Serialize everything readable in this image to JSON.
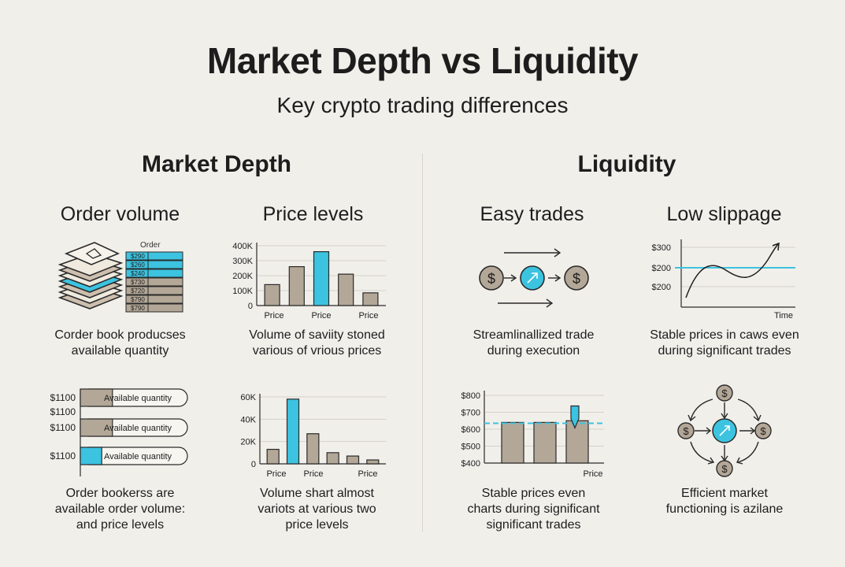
{
  "header": {
    "title": "Market Depth vs Liquidity",
    "subtitle": "Key crypto trading differences"
  },
  "colors": {
    "accent": "#3cc3e0",
    "taupe": "#b3a797",
    "ink": "#1d1d1d",
    "background": "#f1efea"
  },
  "market_depth": {
    "heading": "Market Depth",
    "order_volume": {
      "title": "Order volume",
      "book_header": "Order",
      "book_prices": [
        "$290",
        "$260",
        "$240",
        "$730",
        "$720",
        "$790",
        "$790"
      ],
      "caption_1": "Corder book producses",
      "caption_2": "available quantity",
      "icon": "stacked-books-icon"
    },
    "price_levels": {
      "title": "Price levels",
      "caption_1": "Volume of saviity stoned",
      "caption_2": "various of vrious prices"
    },
    "available_quantity": {
      "rows": [
        {
          "price": "$1100",
          "label": "Available quantity",
          "fill": 0.3,
          "highlight": false
        },
        {
          "price": "$1100",
          "label": "",
          "fill": 0.0,
          "highlight": false
        },
        {
          "price": "$1100",
          "label": "Available quantity",
          "fill": 0.3,
          "highlight": false
        },
        {
          "price": "$1100",
          "label": "Available quantity",
          "fill": 0.2,
          "highlight": true
        }
      ],
      "caption_1": "Order bookerss are",
      "caption_2": "available order volume:",
      "caption_3": "and price levels"
    },
    "volume_chart": {
      "caption_1": "Volume shart almost",
      "caption_2": "variots at various two",
      "caption_3": "price levels"
    }
  },
  "liquidity": {
    "heading": "Liquidity",
    "easy_trades": {
      "title": "Easy trades",
      "caption_1": "Streamlinallized trade",
      "caption_2": "during execution",
      "icon": "dollar-coin-icon"
    },
    "low_slippage": {
      "title": "Low slippage",
      "caption_1": "Stable prices in caws even",
      "caption_2": "during significant trades"
    },
    "stable_prices": {
      "caption_1": "Stable prices even",
      "caption_2": "charts during significant",
      "caption_3": "significant trades"
    },
    "efficient_market": {
      "caption_1": "Efficient market",
      "caption_2": "functioning is azilane",
      "icon": "cycle-arrows-icon"
    }
  },
  "chart_data": [
    {
      "type": "bar",
      "categories": [
        "",
        "",
        "",
        "",
        ""
      ],
      "values": [
        140000,
        260000,
        360000,
        210000,
        85000
      ],
      "highlight_index": 2,
      "yticks": [
        "400K",
        "300K",
        "200K",
        "100K",
        "0"
      ],
      "ylim": [
        0,
        400000
      ],
      "xtick_labels": [
        "Price",
        "Price",
        "Price"
      ],
      "grid": true
    },
    {
      "type": "bar",
      "categories": [
        "",
        "",
        "",
        "",
        "",
        ""
      ],
      "values": [
        13000,
        58000,
        27000,
        10000,
        7000,
        3500
      ],
      "highlight_index": 1,
      "yticks": [
        "60K",
        "40K",
        "20K",
        "0"
      ],
      "ylim": [
        0,
        60000
      ],
      "xtick_labels": [
        "Price",
        "Price",
        "Price"
      ],
      "grid": true
    },
    {
      "type": "line",
      "yticks": [
        "$300",
        "$200",
        "$200"
      ],
      "xlabel": "Time",
      "reference_line": 200,
      "grid": true
    },
    {
      "type": "bar",
      "values": [
        640,
        640,
        650
      ],
      "highlight_index": 2,
      "yticks": [
        "$800",
        "$700",
        "$600",
        "$500",
        "$400"
      ],
      "ylim": [
        400,
        800
      ],
      "xlabel": "Price",
      "reference_line": 635,
      "grid": true
    }
  ]
}
